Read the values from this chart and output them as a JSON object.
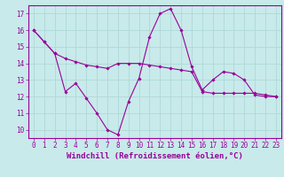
{
  "xlabel": "Windchill (Refroidissement éolien,°C)",
  "bg_color": "#c8eaea",
  "grid_color": "#b0d8d8",
  "line_color": "#990099",
  "line1_x": [
    0,
    1,
    2,
    3,
    4,
    5,
    6,
    7,
    8,
    9,
    10,
    11,
    12,
    13,
    14,
    15,
    16,
    17,
    18,
    19,
    20,
    21,
    22,
    23
  ],
  "line1_y": [
    16.0,
    15.3,
    14.6,
    12.3,
    12.8,
    11.9,
    11.0,
    10.0,
    9.7,
    11.7,
    13.1,
    15.6,
    17.0,
    17.3,
    16.0,
    13.8,
    12.4,
    13.0,
    13.5,
    13.4,
    13.0,
    12.1,
    12.0,
    12.0
  ],
  "line2_x": [
    0,
    1,
    2,
    3,
    4,
    5,
    6,
    7,
    8,
    9,
    10,
    11,
    12,
    13,
    14,
    15,
    16,
    17,
    18,
    19,
    20,
    21,
    22,
    23
  ],
  "line2_y": [
    16.0,
    15.3,
    14.6,
    14.3,
    14.1,
    13.9,
    13.8,
    13.7,
    14.0,
    14.0,
    14.0,
    13.9,
    13.8,
    13.7,
    13.6,
    13.5,
    12.3,
    12.2,
    12.2,
    12.2,
    12.2,
    12.2,
    12.1,
    12.0
  ],
  "ylim": [
    9.5,
    17.5
  ],
  "xlim": [
    -0.5,
    23.5
  ],
  "yticks": [
    10,
    11,
    12,
    13,
    14,
    15,
    16,
    17
  ],
  "xticks": [
    0,
    1,
    2,
    3,
    4,
    5,
    6,
    7,
    8,
    9,
    10,
    11,
    12,
    13,
    14,
    15,
    16,
    17,
    18,
    19,
    20,
    21,
    22,
    23
  ],
  "marker": "D",
  "markersize": 1.8,
  "linewidth": 0.8,
  "xlabel_fontsize": 6.5,
  "tick_fontsize": 5.5
}
